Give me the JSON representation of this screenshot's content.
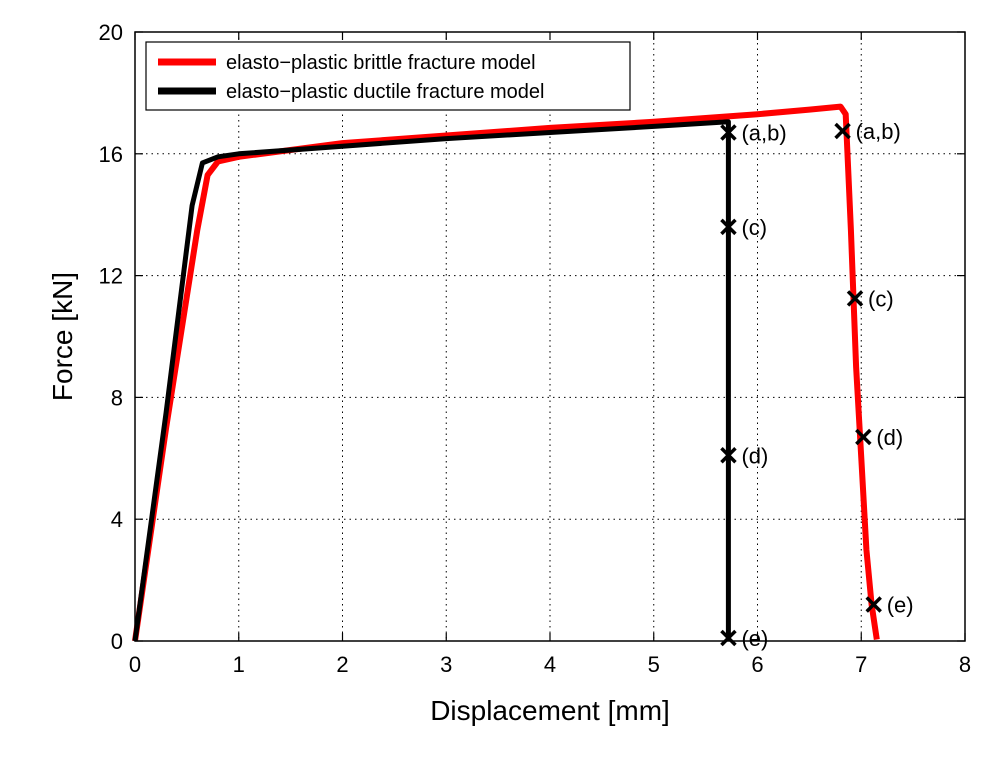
{
  "chart_data": {
    "type": "line",
    "xlabel": "Displacement [mm]",
    "ylabel": "Force [kN]",
    "xlim": [
      0,
      8
    ],
    "ylim": [
      0,
      20
    ],
    "xticks": [
      "0",
      "1",
      "2",
      "3",
      "4",
      "5",
      "6",
      "7",
      "8"
    ],
    "yticks": [
      "0",
      "4",
      "8",
      "12",
      "16",
      "20"
    ],
    "grid": true,
    "legend_position": "top-left",
    "series": [
      {
        "name": "elasto−plastic brittle fracture model",
        "color": "#ff0000",
        "x": [
          0,
          0.3,
          0.6,
          0.7,
          0.8,
          1.0,
          2.0,
          3.0,
          4.0,
          5.0,
          6.0,
          6.5,
          6.8,
          6.85,
          6.9,
          6.95,
          7.0,
          7.05,
          7.1,
          7.15
        ],
        "y": [
          0,
          7.0,
          13.5,
          15.3,
          15.75,
          15.9,
          16.35,
          16.6,
          16.85,
          17.05,
          17.3,
          17.45,
          17.55,
          17.3,
          13.5,
          9.0,
          6.0,
          3.0,
          1.2,
          0.05
        ],
        "markers": [
          {
            "x": 6.82,
            "y": 16.75,
            "label": "(a,b)"
          },
          {
            "x": 6.94,
            "y": 11.25,
            "label": "(c)"
          },
          {
            "x": 7.02,
            "y": 6.7,
            "label": "(d)"
          },
          {
            "x": 7.12,
            "y": 1.2,
            "label": "(e)"
          }
        ]
      },
      {
        "name": "elasto−plastic ductile fracture model",
        "color": "#000000",
        "x": [
          0,
          0.3,
          0.55,
          0.65,
          0.8,
          1.0,
          2.0,
          3.0,
          4.0,
          5.0,
          5.72,
          5.72
        ],
        "y": [
          0,
          7.5,
          14.3,
          15.7,
          15.9,
          16.0,
          16.25,
          16.5,
          16.7,
          16.9,
          17.05,
          0.0
        ],
        "markers": [
          {
            "x": 5.72,
            "y": 16.7,
            "label": "(a,b)"
          },
          {
            "x": 5.72,
            "y": 13.6,
            "label": "(c)"
          },
          {
            "x": 5.72,
            "y": 6.1,
            "label": "(d)"
          },
          {
            "x": 5.72,
            "y": 0.1,
            "label": "(e)"
          }
        ]
      }
    ]
  }
}
